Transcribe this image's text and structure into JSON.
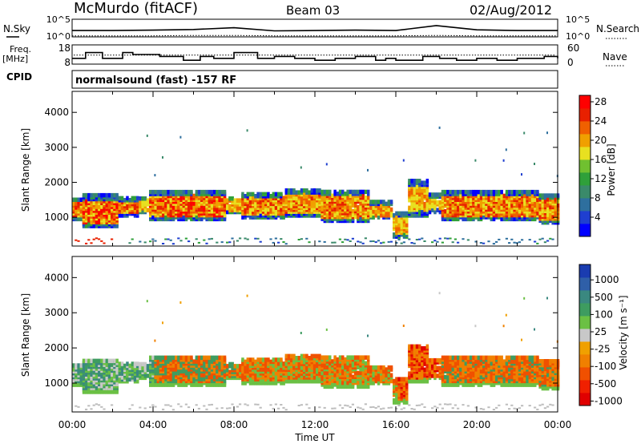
{
  "header": {
    "station": "McMurdo (fitACF)",
    "beam": "Beam 03",
    "date": "02/Aug/2012"
  },
  "side_labels": {
    "nsky": "N.Sky",
    "nsearch": "N.Search",
    "freq": "Freq.",
    "freq_unit": "[MHz]",
    "nave": "Nave",
    "cpid": "CPID",
    "cpid_value": "normalsound (fast) -157 RF"
  },
  "chart_data": [
    {
      "type": "line",
      "name": "noise-panel",
      "series": [
        {
          "name": "N.Sky"
        },
        {
          "name": "N.Search"
        }
      ],
      "left_ticks": [
        "10^5",
        "10^0"
      ],
      "right_ticks": [
        "10^5",
        "10^0"
      ],
      "x": [
        "00:00",
        "02:00",
        "04:00",
        "06:00",
        "08:00",
        "10:00",
        "12:00",
        "14:00",
        "16:00",
        "18:00",
        "20:00",
        "22:00",
        "00:00"
      ],
      "nsky": [
        1.8,
        1.8,
        1.9,
        2.1,
        2.6,
        1.7,
        1.8,
        1.9,
        1.8,
        3.2,
        2.0,
        1.8,
        1.8
      ],
      "nsearch": [
        0.3,
        0.3,
        0.3,
        0.4,
        0.4,
        0.3,
        0.3,
        0.3,
        0.3,
        0.4,
        0.3,
        0.3,
        0.3
      ]
    },
    {
      "type": "line",
      "name": "freq-nave-panel",
      "left_ticks": [
        "18",
        "8"
      ],
      "right_ticks": [
        "60",
        "0"
      ],
      "freq_x": [
        "00:00",
        "00:40",
        "01:30",
        "02:30",
        "03:00",
        "04:20",
        "05:30",
        "06:20",
        "07:00",
        "08:00",
        "09:10",
        "10:00",
        "11:00",
        "12:00",
        "13:00",
        "14:00",
        "15:00",
        "15:30",
        "16:00",
        "17:20",
        "18:10",
        "19:00",
        "20:00",
        "21:00",
        "22:00",
        "23:20",
        "00:00"
      ],
      "freq_mhz": [
        11,
        14,
        11,
        14,
        13,
        12,
        10,
        12,
        11,
        14,
        11,
        12,
        11,
        10,
        11,
        12,
        10,
        11,
        10,
        12,
        11,
        10,
        11,
        10,
        11,
        12,
        11
      ],
      "nave_level": 28
    },
    {
      "type": "heatmap",
      "name": "power-panel",
      "xlabel": "",
      "ylabel": "Slant Range [km]",
      "x_ticks": [
        "00:00",
        "04:00",
        "08:00",
        "12:00",
        "16:00",
        "20:00",
        "00:00"
      ],
      "y_ticks": [
        1000,
        2000,
        3000,
        4000
      ],
      "ylim": [
        180,
        4600
      ],
      "colorbar_label": "Power [dB]",
      "colorbar_ticks": [
        4,
        8,
        12,
        16,
        20,
        24,
        28
      ],
      "colorbar_colors": [
        "#0000ff",
        "#1f3fd0",
        "#2e6f9e",
        "#3a8a6a",
        "#2fa03a",
        "#70c030",
        "#e8e020",
        "#f0a000",
        "#f06000",
        "#e82000",
        "#ff0000"
      ]
    },
    {
      "type": "heatmap",
      "name": "velocity-panel",
      "xlabel": "Time UT",
      "ylabel": "Slant Range [km]",
      "x_ticks": [
        "00:00",
        "04:00",
        "08:00",
        "12:00",
        "16:00",
        "20:00",
        "00:00"
      ],
      "y_ticks": [
        1000,
        2000,
        3000,
        4000
      ],
      "ylim": [
        180,
        4600
      ],
      "colorbar_label": "Velocity [m s⁻¹]",
      "colorbar_ticks": [
        "1000",
        "500",
        "100",
        "25",
        "-25",
        "-100",
        "-500",
        "-1000"
      ],
      "colorbar_colors": [
        "#1a3cb0",
        "#2f5fa8",
        "#3a8880",
        "#3e9c60",
        "#6bc044",
        "#c8c8c8",
        "#f0a000",
        "#f08000",
        "#f05000",
        "#f02000",
        "#e00000"
      ]
    }
  ],
  "colors": {
    "frame": "#000000",
    "ground_scatter": "#bdbdbd"
  }
}
